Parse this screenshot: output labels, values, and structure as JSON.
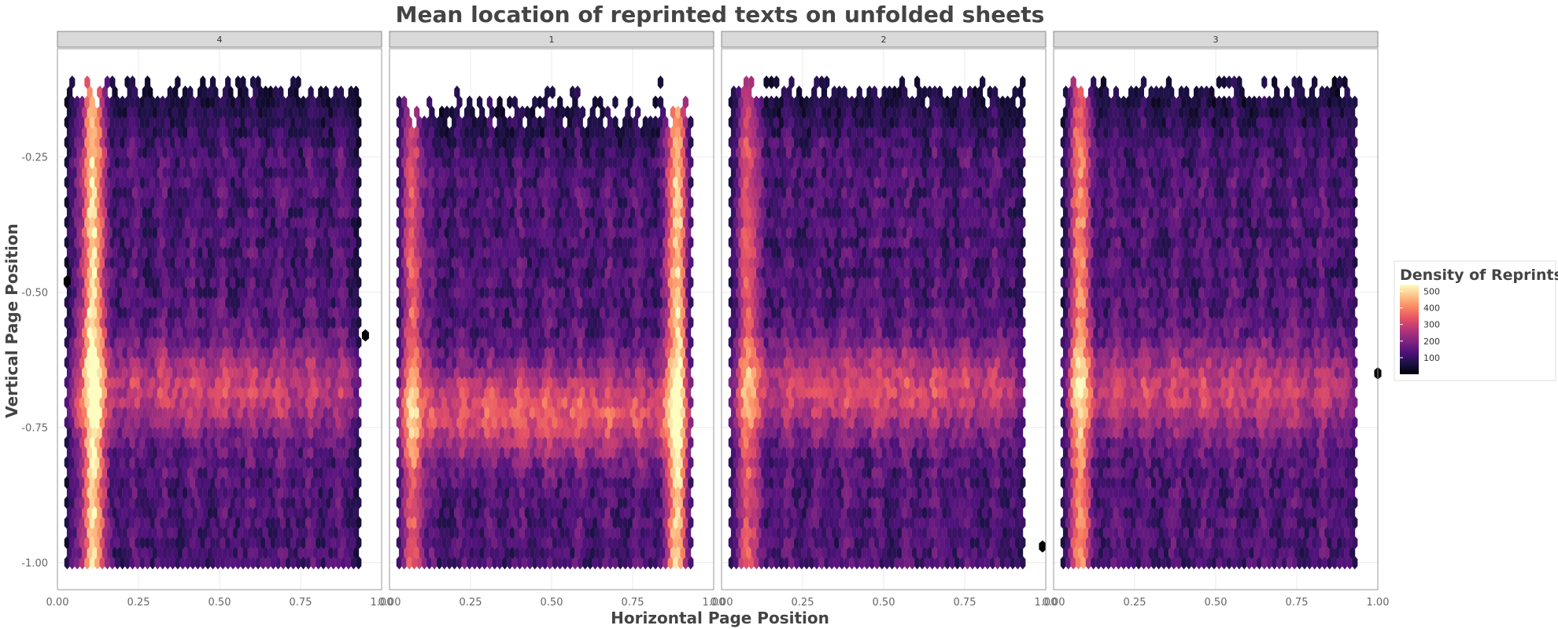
{
  "chart_data": {
    "type": "hexbin",
    "title": "Mean location of reprinted texts on unfolded sheets",
    "xlabel": "Horizontal Page Position",
    "ylabel": "Vertical Page Position",
    "xlim": [
      0,
      1
    ],
    "ylim": [
      -1.05,
      -0.05
    ],
    "x_ticks": [
      0,
      0.25,
      0.5,
      0.75,
      1
    ],
    "x_tick_labels": [
      "0.00",
      "0.25",
      "0.50",
      "0.75",
      "1.00"
    ],
    "y_ticks": [
      -0.25,
      -0.5,
      -0.75,
      -1.0
    ],
    "y_tick_labels": [
      "-0.25",
      "-0.50",
      "-0.75",
      "-1.00"
    ],
    "grid": true,
    "facets": [
      {
        "label": "4",
        "hot_columns": [
          {
            "x": 0.11,
            "strength": 1.0
          }
        ],
        "hot_band": {
          "y_center": -0.68,
          "strength": 0.55
        },
        "outliers": [
          {
            "x": 0.03,
            "y": -0.48
          },
          {
            "x": 0.95,
            "y": -0.58
          }
        ]
      },
      {
        "label": "1",
        "hot_columns": [
          {
            "x": 0.07,
            "strength": 0.6
          },
          {
            "x": 0.89,
            "strength": 0.95
          }
        ],
        "hot_band": {
          "y_center": -0.72,
          "strength": 0.7
        },
        "outliers": []
      },
      {
        "label": "2",
        "hot_columns": [
          {
            "x": 0.08,
            "strength": 0.55
          }
        ],
        "hot_band": {
          "y_center": -0.68,
          "strength": 0.6
        },
        "outliers": [
          {
            "x": 0.99,
            "y": -0.97
          }
        ]
      },
      {
        "label": "3",
        "hot_columns": [
          {
            "x": 0.08,
            "strength": 0.7
          }
        ],
        "hot_band": {
          "y_center": -0.68,
          "strength": 0.55
        },
        "outliers": [
          {
            "x": 1.0,
            "y": -0.65
          }
        ]
      }
    ],
    "legend": {
      "title": "Density of Reprints",
      "labels": [
        "500",
        "400",
        "300",
        "200",
        "100"
      ],
      "values": [
        500,
        400,
        300,
        200,
        100
      ],
      "range": [
        0,
        540
      ],
      "placement": "right"
    },
    "colors": {
      "palette": [
        "#000004",
        "#1d1147",
        "#51127c",
        "#832681",
        "#b63679",
        "#e65164",
        "#fb8861",
        "#fec287",
        "#fcfdbf"
      ],
      "strip_fill": "#d9d9d9",
      "panel_border": "#999999",
      "grid": "#ebebeb"
    }
  }
}
